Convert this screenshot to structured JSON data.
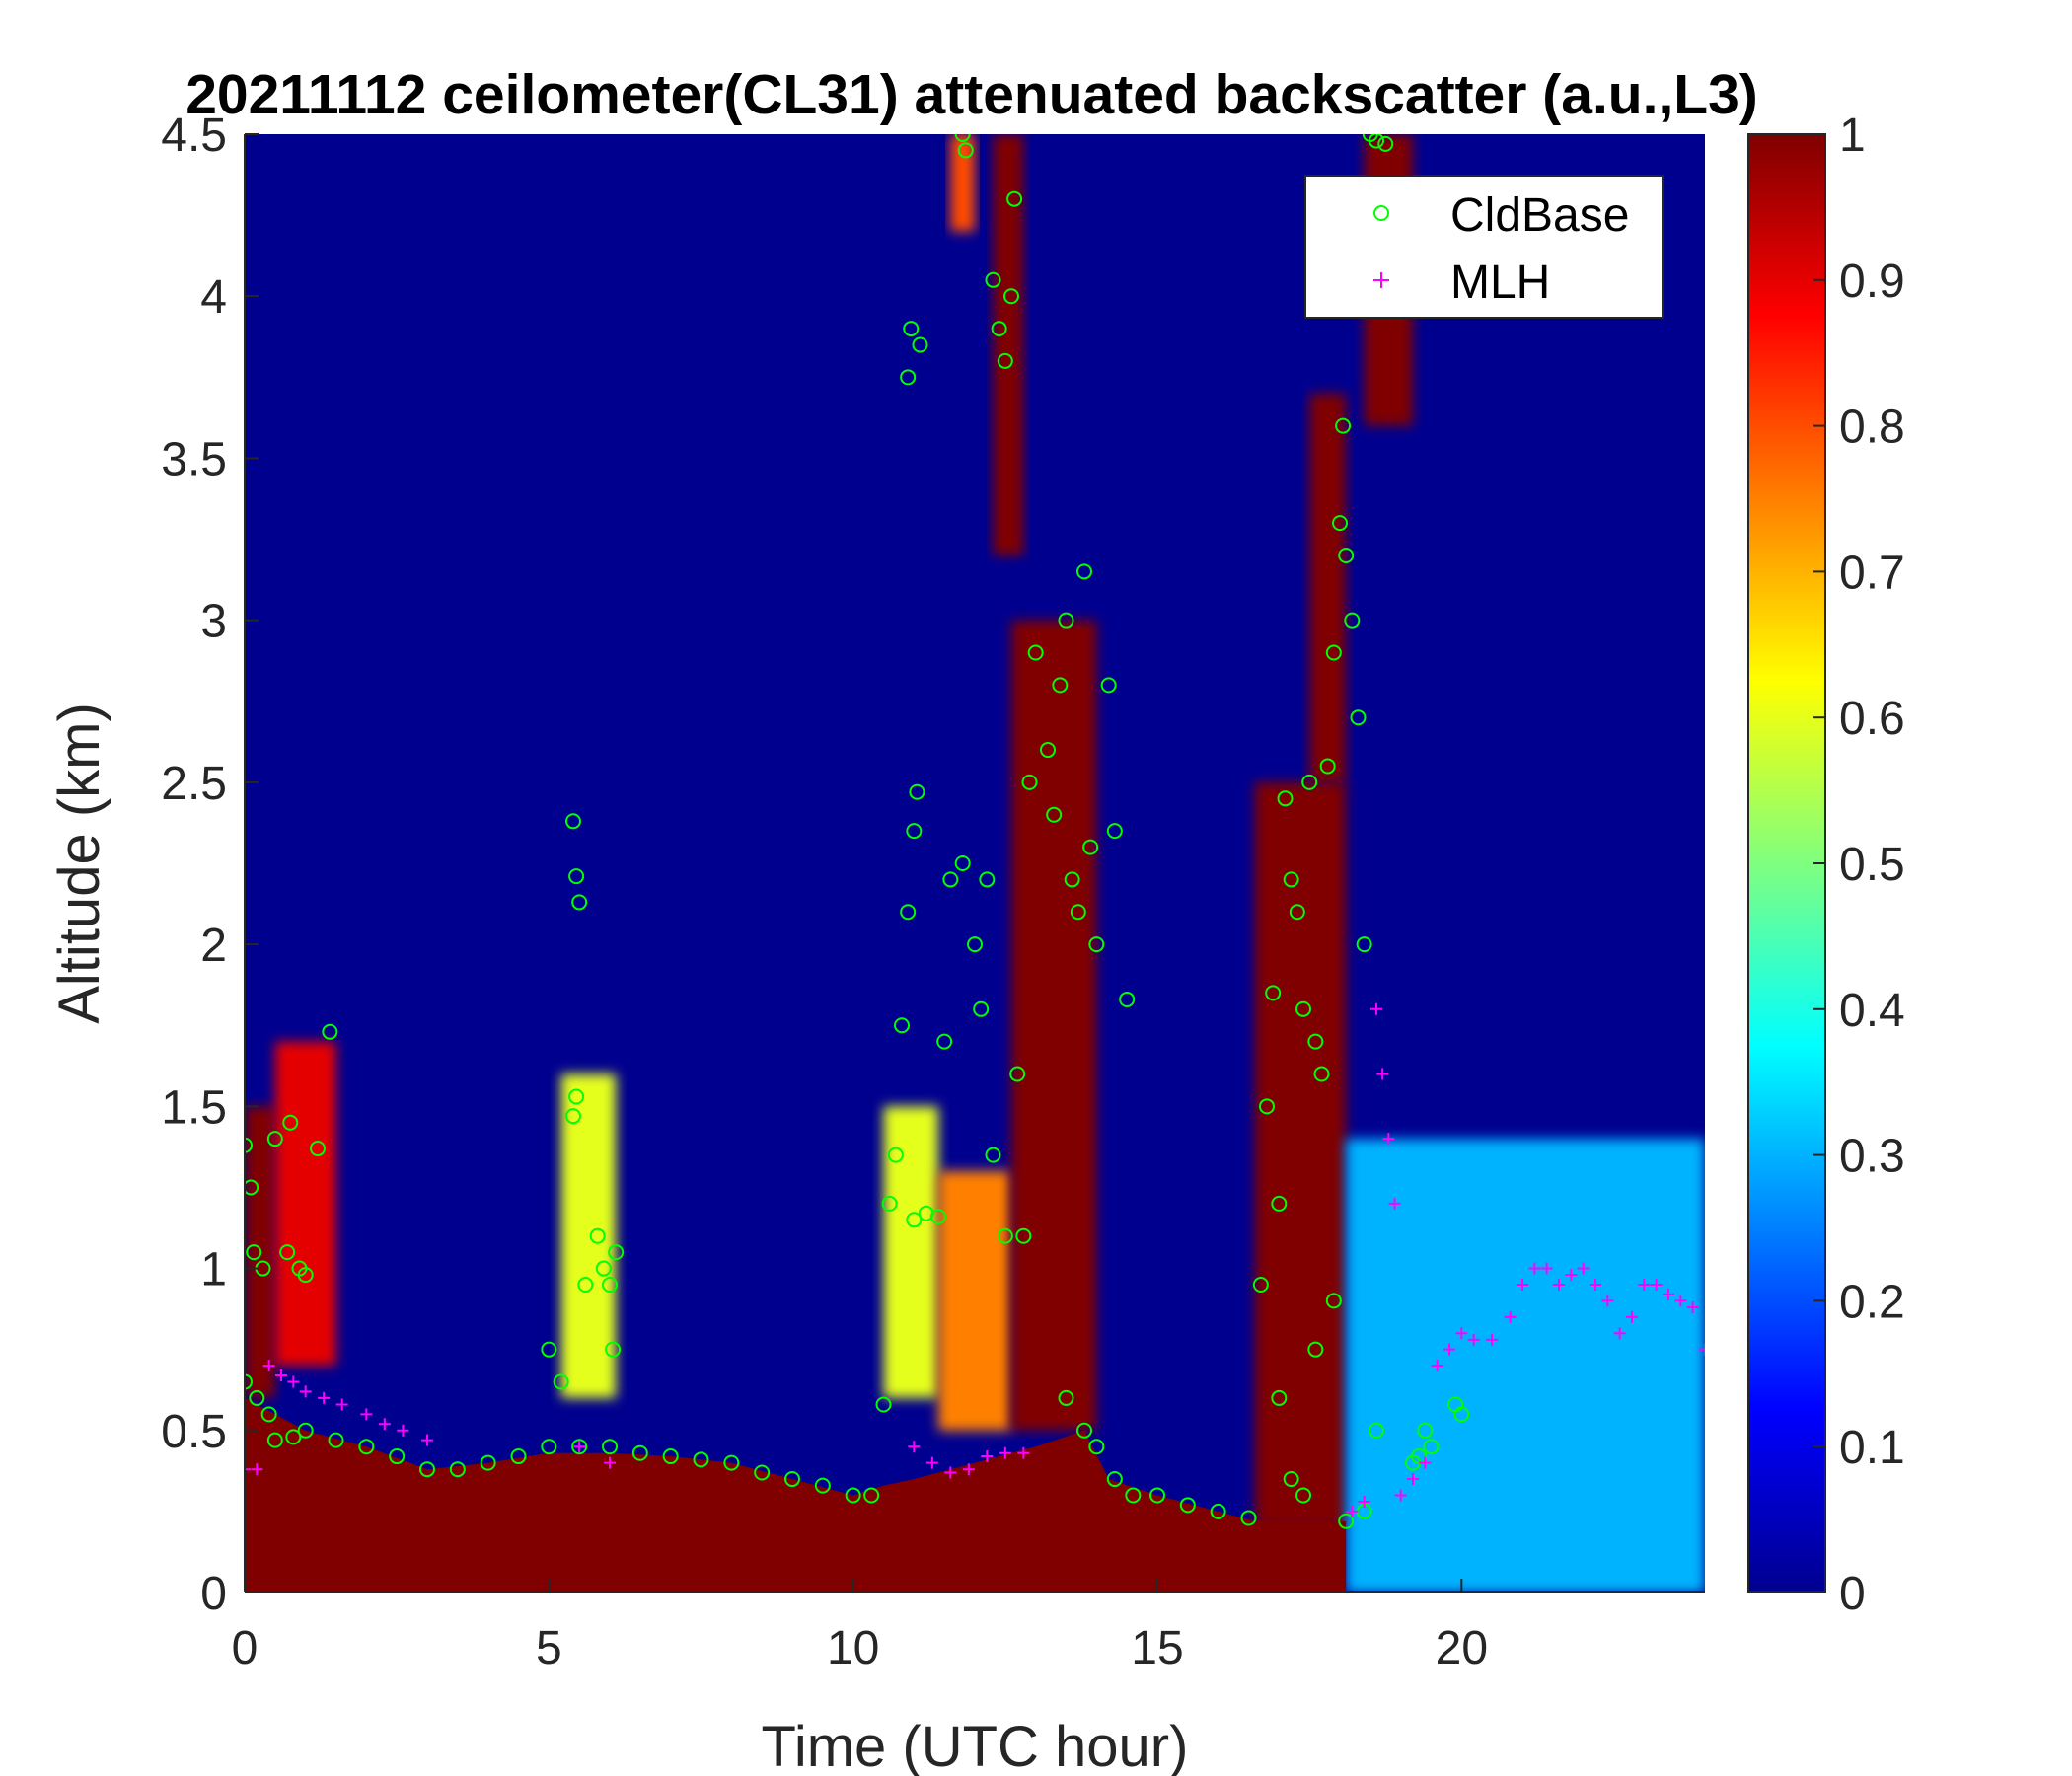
{
  "chart_data": {
    "type": "heatmap",
    "title": "20211112 ceilometer(CL31) attenuated backscatter (a.u.,L3)",
    "xlabel": "Time (UTC hour)",
    "ylabel": "Altitude (km)",
    "xlim": [
      0,
      24
    ],
    "ylim": [
      0,
      4.5
    ],
    "x_ticks": [
      "0",
      "5",
      "10",
      "15",
      "20"
    ],
    "y_ticks": [
      "0",
      "0.5",
      "1",
      "1.5",
      "2",
      "2.5",
      "3",
      "3.5",
      "4",
      "4.5"
    ],
    "colorbar": {
      "colormap": "jet",
      "range": [
        0,
        1
      ],
      "ticks": [
        "0",
        "0.1",
        "0.2",
        "0.3",
        "0.4",
        "0.5",
        "0.6",
        "0.7",
        "0.8",
        "0.9",
        "1"
      ]
    },
    "legend": {
      "position": "top-right",
      "entries": [
        {
          "name": "CldBase",
          "marker": "circle",
          "color": "#00ff00"
        },
        {
          "name": "MLH",
          "marker": "plus",
          "color": "#ff00ff"
        }
      ]
    },
    "background_color": "#00008f",
    "saturated_color": "#800000",
    "aerosol_layer_top_km": [
      [
        0,
        0.6
      ],
      [
        0.5,
        0.55
      ],
      [
        1,
        0.5
      ],
      [
        2,
        0.45
      ],
      [
        3,
        0.38
      ],
      [
        4,
        0.4
      ],
      [
        5,
        0.43
      ],
      [
        6,
        0.43
      ],
      [
        7,
        0.42
      ],
      [
        8,
        0.4
      ],
      [
        9,
        0.35
      ],
      [
        10,
        0.3
      ],
      [
        10.5,
        0.33
      ],
      [
        11,
        0.35
      ],
      [
        12,
        0.4
      ],
      [
        13,
        0.45
      ],
      [
        13.8,
        0.5
      ],
      [
        14.2,
        0.35
      ],
      [
        15,
        0.3
      ],
      [
        16,
        0.25
      ],
      [
        16.6,
        0.22
      ],
      [
        18.1,
        0.22
      ]
    ],
    "clouds": [
      {
        "t_start": 0.0,
        "t_end": 0.5,
        "base_km": 0.6,
        "top_km": 1.5,
        "value": 1.0
      },
      {
        "t_start": 0.5,
        "t_end": 1.5,
        "base_km": 0.7,
        "top_km": 1.7,
        "value": 0.9
      },
      {
        "t_start": 5.2,
        "t_end": 6.1,
        "base_km": 0.6,
        "top_km": 1.6,
        "value": 0.6
      },
      {
        "t_start": 10.5,
        "t_end": 11.4,
        "base_km": 0.6,
        "top_km": 1.5,
        "value": 0.6
      },
      {
        "t_start": 11.4,
        "t_end": 12.6,
        "base_km": 0.5,
        "top_km": 1.3,
        "value": 0.75
      },
      {
        "t_start": 12.6,
        "t_end": 14.0,
        "base_km": 0.5,
        "top_km": 3.0,
        "value": 1.0
      },
      {
        "t_start": 11.6,
        "t_end": 12.0,
        "base_km": 4.2,
        "top_km": 4.5,
        "value": 0.8
      },
      {
        "t_start": 12.3,
        "t_end": 12.8,
        "base_km": 3.2,
        "top_km": 4.5,
        "value": 1.0
      },
      {
        "t_start": 16.6,
        "t_end": 18.1,
        "base_km": 0.2,
        "top_km": 2.5,
        "value": 1.0
      },
      {
        "t_start": 17.5,
        "t_end": 18.1,
        "base_km": 2.5,
        "top_km": 3.7,
        "value": 1.0
      },
      {
        "t_start": 18.4,
        "t_end": 19.2,
        "base_km": 3.6,
        "top_km": 4.5,
        "value": 1.0
      },
      {
        "t_start": 18.1,
        "t_end": 24.0,
        "base_km": 0.0,
        "top_km": 1.4,
        "value": 0.3
      }
    ],
    "series": [
      {
        "name": "CldBase",
        "marker": "circle",
        "points": [
          [
            0.0,
            1.38
          ],
          [
            0.1,
            1.25
          ],
          [
            0.15,
            1.05
          ],
          [
            0.3,
            1.0
          ],
          [
            0.5,
            1.4
          ],
          [
            0.7,
            1.05
          ],
          [
            0.75,
            1.45
          ],
          [
            0.9,
            1.0
          ],
          [
            1.0,
            0.98
          ],
          [
            1.2,
            1.37
          ],
          [
            1.4,
            1.73
          ],
          [
            0.0,
            0.65
          ],
          [
            0.2,
            0.6
          ],
          [
            0.4,
            0.55
          ],
          [
            0.5,
            0.47
          ],
          [
            0.8,
            0.48
          ],
          [
            1.0,
            0.5
          ],
          [
            1.5,
            0.47
          ],
          [
            2.0,
            0.45
          ],
          [
            2.5,
            0.42
          ],
          [
            3.0,
            0.38
          ],
          [
            3.5,
            0.38
          ],
          [
            4.0,
            0.4
          ],
          [
            4.5,
            0.42
          ],
          [
            5.0,
            0.45
          ],
          [
            5.0,
            0.75
          ],
          [
            5.2,
            0.65
          ],
          [
            5.4,
            1.47
          ],
          [
            5.45,
            1.53
          ],
          [
            5.4,
            2.38
          ],
          [
            5.45,
            2.21
          ],
          [
            5.5,
            2.13
          ],
          [
            5.6,
            0.95
          ],
          [
            5.8,
            1.1
          ],
          [
            5.9,
            1.0
          ],
          [
            6.0,
            0.95
          ],
          [
            6.05,
            0.75
          ],
          [
            6.1,
            1.05
          ],
          [
            5.5,
            0.45
          ],
          [
            6.0,
            0.45
          ],
          [
            6.5,
            0.43
          ],
          [
            7.0,
            0.42
          ],
          [
            7.5,
            0.41
          ],
          [
            8.0,
            0.4
          ],
          [
            8.5,
            0.37
          ],
          [
            9.0,
            0.35
          ],
          [
            9.5,
            0.33
          ],
          [
            10.0,
            0.3
          ],
          [
            10.3,
            0.3
          ],
          [
            10.5,
            0.58
          ],
          [
            10.6,
            1.2
          ],
          [
            10.7,
            1.35
          ],
          [
            10.8,
            1.75
          ],
          [
            10.9,
            2.1
          ],
          [
            11.0,
            2.35
          ],
          [
            11.05,
            2.47
          ],
          [
            10.9,
            3.75
          ],
          [
            10.95,
            3.9
          ],
          [
            11.1,
            3.85
          ],
          [
            11.0,
            1.15
          ],
          [
            11.2,
            1.17
          ],
          [
            11.4,
            1.16
          ],
          [
            11.5,
            1.7
          ],
          [
            11.6,
            2.2
          ],
          [
            11.8,
            2.25
          ],
          [
            11.8,
            4.5
          ],
          [
            11.85,
            4.45
          ],
          [
            12.0,
            2.0
          ],
          [
            12.1,
            1.8
          ],
          [
            12.2,
            2.2
          ],
          [
            12.3,
            4.05
          ],
          [
            12.4,
            3.9
          ],
          [
            12.5,
            3.8
          ],
          [
            12.6,
            4.0
          ],
          [
            12.65,
            4.3
          ],
          [
            12.3,
            1.35
          ],
          [
            12.5,
            1.1
          ],
          [
            12.7,
            1.6
          ],
          [
            12.8,
            1.1
          ],
          [
            12.9,
            2.5
          ],
          [
            13.0,
            2.9
          ],
          [
            13.2,
            2.6
          ],
          [
            13.3,
            2.4
          ],
          [
            13.4,
            2.8
          ],
          [
            13.5,
            3.0
          ],
          [
            13.6,
            2.2
          ],
          [
            13.7,
            2.1
          ],
          [
            13.8,
            3.15
          ],
          [
            13.9,
            2.3
          ],
          [
            14.0,
            2.0
          ],
          [
            14.2,
            2.8
          ],
          [
            14.3,
            2.35
          ],
          [
            14.5,
            1.83
          ],
          [
            13.5,
            0.6
          ],
          [
            13.8,
            0.5
          ],
          [
            14.0,
            0.45
          ],
          [
            14.3,
            0.35
          ],
          [
            14.6,
            0.3
          ],
          [
            15.0,
            0.3
          ],
          [
            15.5,
            0.27
          ],
          [
            16.0,
            0.25
          ],
          [
            16.5,
            0.23
          ],
          [
            16.7,
            0.95
          ],
          [
            16.8,
            1.5
          ],
          [
            16.9,
            1.85
          ],
          [
            17.0,
            1.2
          ],
          [
            17.1,
            2.45
          ],
          [
            17.2,
            2.2
          ],
          [
            17.3,
            2.1
          ],
          [
            17.4,
            1.8
          ],
          [
            17.5,
            2.5
          ],
          [
            17.6,
            1.7
          ],
          [
            17.7,
            1.6
          ],
          [
            17.8,
            2.55
          ],
          [
            17.9,
            2.9
          ],
          [
            18.0,
            3.3
          ],
          [
            18.05,
            3.6
          ],
          [
            18.1,
            3.2
          ],
          [
            18.2,
            3.0
          ],
          [
            18.3,
            2.7
          ],
          [
            18.4,
            2.0
          ],
          [
            17.0,
            0.6
          ],
          [
            17.2,
            0.35
          ],
          [
            17.4,
            0.3
          ],
          [
            17.6,
            0.75
          ],
          [
            17.9,
            0.9
          ],
          [
            18.1,
            0.22
          ],
          [
            18.4,
            0.25
          ],
          [
            18.6,
            0.5
          ],
          [
            19.2,
            0.4
          ],
          [
            19.3,
            0.42
          ],
          [
            19.4,
            0.5
          ],
          [
            19.5,
            0.45
          ],
          [
            19.9,
            0.58
          ],
          [
            20.0,
            0.55
          ],
          [
            18.5,
            4.5
          ],
          [
            18.6,
            4.48
          ],
          [
            18.75,
            4.47
          ]
        ]
      },
      {
        "name": "MLH",
        "marker": "plus",
        "points": [
          [
            0.0,
            0.38
          ],
          [
            0.2,
            0.38
          ],
          [
            0.4,
            0.7
          ],
          [
            0.6,
            0.67
          ],
          [
            0.8,
            0.65
          ],
          [
            1.0,
            0.62
          ],
          [
            1.3,
            0.6
          ],
          [
            1.6,
            0.58
          ],
          [
            2.0,
            0.55
          ],
          [
            2.3,
            0.52
          ],
          [
            2.6,
            0.5
          ],
          [
            3.0,
            0.47
          ],
          [
            5.5,
            0.45
          ],
          [
            6.0,
            0.4
          ],
          [
            11.0,
            0.45
          ],
          [
            11.3,
            0.4
          ],
          [
            11.6,
            0.37
          ],
          [
            11.9,
            0.38
          ],
          [
            12.2,
            0.42
          ],
          [
            12.5,
            0.43
          ],
          [
            12.8,
            0.43
          ],
          [
            18.2,
            0.25
          ],
          [
            18.4,
            0.28
          ],
          [
            18.6,
            1.8
          ],
          [
            18.7,
            1.6
          ],
          [
            18.8,
            1.4
          ],
          [
            18.9,
            1.2
          ],
          [
            19.0,
            0.3
          ],
          [
            19.2,
            0.35
          ],
          [
            19.4,
            0.4
          ],
          [
            19.6,
            0.7
          ],
          [
            19.8,
            0.75
          ],
          [
            20.0,
            0.8
          ],
          [
            20.2,
            0.78
          ],
          [
            20.5,
            0.78
          ],
          [
            20.8,
            0.85
          ],
          [
            21.0,
            0.95
          ],
          [
            21.2,
            1.0
          ],
          [
            21.4,
            1.0
          ],
          [
            21.6,
            0.95
          ],
          [
            21.8,
            0.98
          ],
          [
            22.0,
            1.0
          ],
          [
            22.2,
            0.95
          ],
          [
            22.4,
            0.9
          ],
          [
            22.6,
            0.8
          ],
          [
            22.8,
            0.85
          ],
          [
            23.0,
            0.95
          ],
          [
            23.2,
            0.95
          ],
          [
            23.4,
            0.92
          ],
          [
            23.6,
            0.9
          ],
          [
            23.8,
            0.88
          ],
          [
            24.0,
            0.75
          ]
        ]
      }
    ]
  }
}
